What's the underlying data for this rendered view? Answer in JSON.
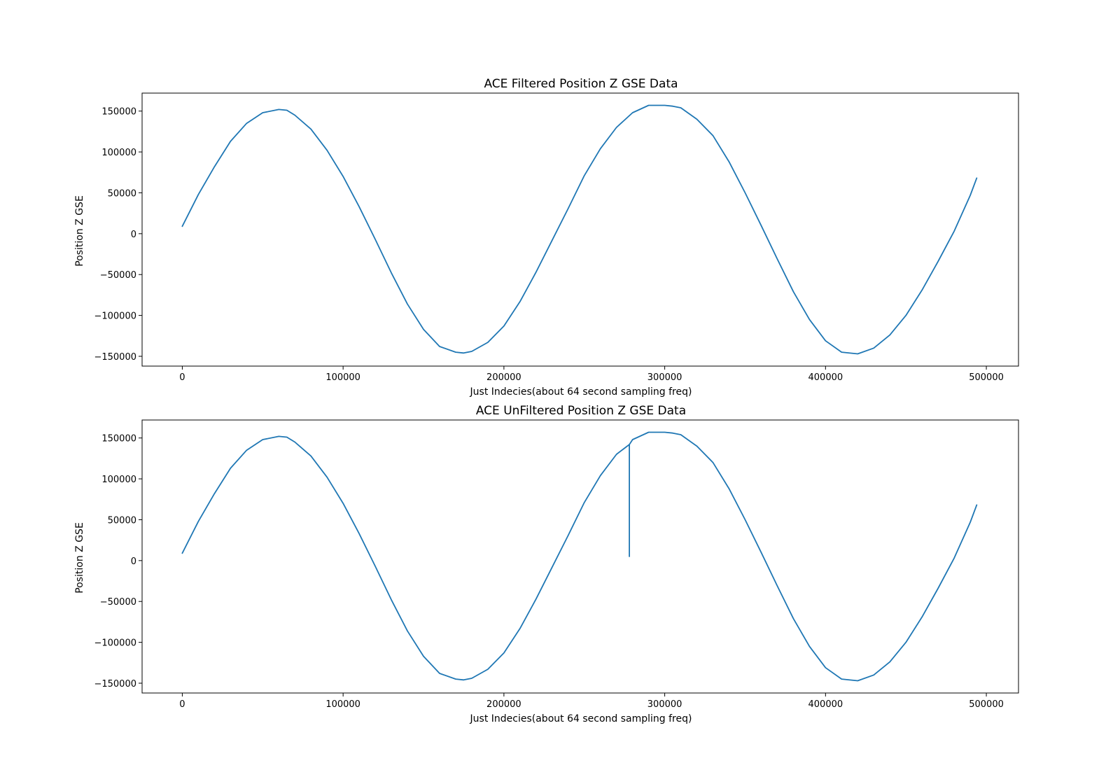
{
  "colors": {
    "series": "#1f77b4",
    "axis": "#000000",
    "background": "#ffffff"
  },
  "chart_data": [
    {
      "type": "line",
      "title": "ACE Filtered Position Z GSE Data",
      "xlabel": "Just Indecies(about 64 second sampling freq)",
      "ylabel": "Position Z GSE",
      "xlim": [
        -25000,
        520000
      ],
      "ylim": [
        -162000,
        172000
      ],
      "xticks": [
        0,
        100000,
        200000,
        300000,
        400000,
        500000
      ],
      "yticks": [
        -150000,
        -100000,
        -50000,
        0,
        50000,
        100000,
        150000
      ],
      "xtick_labels": [
        "0",
        "100000",
        "200000",
        "300000",
        "400000",
        "500000"
      ],
      "ytick_labels": [
        "−150000",
        "−100000",
        "−50000",
        "0",
        "50000",
        "100000",
        "150000"
      ],
      "grid": false,
      "series": [
        {
          "x": [
            0,
            10000,
            20000,
            30000,
            40000,
            50000,
            60000,
            65000,
            70000,
            80000,
            90000,
            100000,
            110000,
            120000,
            130000,
            140000,
            150000,
            160000,
            170000,
            175000,
            180000,
            190000,
            200000,
            210000,
            220000,
            230000,
            240000,
            250000,
            260000,
            270000,
            280000,
            290000,
            300000,
            305000,
            310000,
            320000,
            330000,
            340000,
            350000,
            360000,
            370000,
            380000,
            390000,
            400000,
            410000,
            420000,
            430000,
            440000,
            450000,
            460000,
            470000,
            480000,
            490000,
            494000
          ],
          "y": [
            9000,
            48000,
            82000,
            113000,
            135000,
            148000,
            152000,
            151000,
            145000,
            128000,
            102000,
            70000,
            33000,
            -7000,
            -48000,
            -86000,
            -117000,
            -138000,
            -145000,
            -146000,
            -144000,
            -133000,
            -113000,
            -83000,
            -47000,
            -8000,
            31000,
            71000,
            104000,
            130000,
            148000,
            157000,
            157000,
            156000,
            154000,
            140000,
            120000,
            88000,
            50000,
            10000,
            -31000,
            -71000,
            -105000,
            -131000,
            -145000,
            -147000,
            -140000,
            -124000,
            -100000,
            -69000,
            -34000,
            3000,
            47000,
            68000
          ]
        }
      ]
    },
    {
      "type": "line",
      "title": "ACE UnFiltered Position Z GSE Data",
      "xlabel": "Just Indecies(about 64 second sampling freq)",
      "ylabel": "Position Z GSE",
      "xlim": [
        -25000,
        520000
      ],
      "ylim": [
        -162000,
        172000
      ],
      "xticks": [
        0,
        100000,
        200000,
        300000,
        400000,
        500000
      ],
      "yticks": [
        -150000,
        -100000,
        -50000,
        0,
        50000,
        100000,
        150000
      ],
      "xtick_labels": [
        "0",
        "100000",
        "200000",
        "300000",
        "400000",
        "500000"
      ],
      "ytick_labels": [
        "−150000",
        "−100000",
        "−50000",
        "0",
        "50000",
        "100000",
        "150000"
      ],
      "grid": false,
      "series": [
        {
          "x": [
            0,
            10000,
            20000,
            30000,
            40000,
            50000,
            60000,
            65000,
            70000,
            80000,
            90000,
            100000,
            110000,
            120000,
            130000,
            140000,
            150000,
            160000,
            170000,
            175000,
            180000,
            190000,
            200000,
            210000,
            220000,
            230000,
            240000,
            250000,
            260000,
            270000,
            278000,
            278000,
            278000,
            280000,
            290000,
            300000,
            305000,
            310000,
            320000,
            330000,
            340000,
            350000,
            360000,
            370000,
            380000,
            390000,
            400000,
            410000,
            420000,
            430000,
            440000,
            450000,
            460000,
            470000,
            480000,
            490000,
            494000
          ],
          "y": [
            9000,
            48000,
            82000,
            113000,
            135000,
            148000,
            152000,
            151000,
            145000,
            128000,
            102000,
            70000,
            33000,
            -7000,
            -48000,
            -86000,
            -117000,
            -138000,
            -145000,
            -146000,
            -144000,
            -133000,
            -113000,
            -83000,
            -47000,
            -8000,
            31000,
            71000,
            104000,
            130000,
            142000,
            5000,
            142000,
            148000,
            157000,
            157000,
            156000,
            154000,
            140000,
            120000,
            88000,
            50000,
            10000,
            -31000,
            -71000,
            -105000,
            -131000,
            -145000,
            -147000,
            -140000,
            -124000,
            -100000,
            -69000,
            -34000,
            3000,
            47000,
            68000
          ]
        }
      ]
    }
  ]
}
